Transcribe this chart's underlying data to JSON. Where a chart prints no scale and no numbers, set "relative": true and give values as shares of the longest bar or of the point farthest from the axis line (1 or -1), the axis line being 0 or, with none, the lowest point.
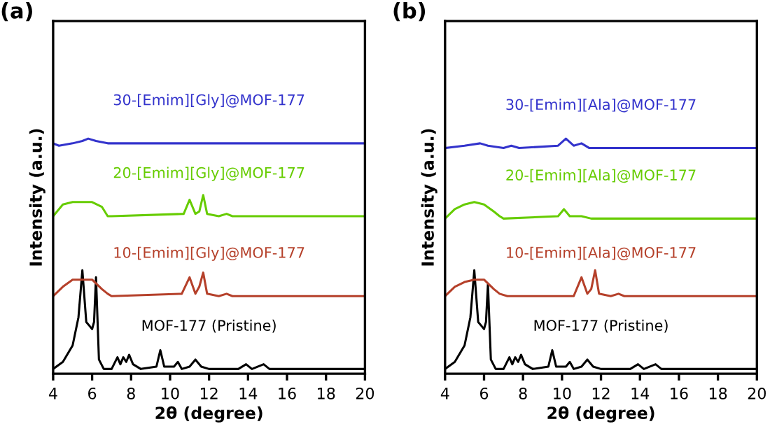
{
  "chart_data": [
    {
      "type": "line",
      "title": "(a)",
      "xlabel": "2θ (degree)",
      "ylabel": "Intensity (a.u.)",
      "relative": true,
      "xlim": [
        4,
        20
      ],
      "xticks": [
        4,
        6,
        8,
        10,
        12,
        14,
        16,
        18,
        20
      ],
      "legend": false,
      "grid": false,
      "series": [
        {
          "name": "MOF-177 (Pristine)",
          "color": "#000000",
          "x": [
            4,
            4.5,
            5,
            5.3,
            5.5,
            5.7,
            5.9,
            6.0,
            6.1,
            6.2,
            6.35,
            6.6,
            7,
            7.3,
            7.45,
            7.6,
            7.75,
            7.9,
            8.1,
            8.5,
            9.3,
            9.5,
            9.7,
            10.2,
            10.4,
            10.6,
            11,
            11.3,
            11.6,
            12,
            13.5,
            13.9,
            14.2,
            14.8,
            15.1,
            20
          ],
          "values": [
            0.02,
            0.05,
            0.12,
            0.24,
            0.44,
            0.22,
            0.2,
            0.19,
            0.22,
            0.41,
            0.06,
            0.02,
            0.02,
            0.07,
            0.04,
            0.07,
            0.05,
            0.08,
            0.04,
            0.02,
            0.03,
            0.1,
            0.03,
            0.03,
            0.05,
            0.02,
            0.03,
            0.06,
            0.03,
            0.02,
            0.02,
            0.04,
            0.02,
            0.04,
            0.02,
            0.02
          ]
        },
        {
          "name": "10-[Emim][Gly]@MOF-177",
          "color": "#b5402a",
          "x": [
            4,
            4.5,
            5,
            5.5,
            6,
            6.5,
            6.8,
            7,
            10.6,
            11,
            11.3,
            11.5,
            11.7,
            11.9,
            12.5,
            12.9,
            13.2,
            20
          ],
          "values": [
            0.33,
            0.37,
            0.4,
            0.4,
            0.4,
            0.36,
            0.34,
            0.33,
            0.34,
            0.41,
            0.34,
            0.37,
            0.43,
            0.34,
            0.33,
            0.34,
            0.33,
            0.33
          ]
        },
        {
          "name": "20-[Emim][Gly]@MOF-177",
          "color": "#66cc00",
          "x": [
            4,
            4.5,
            5,
            5.5,
            6,
            6.5,
            6.8,
            7,
            10.7,
            11,
            11.3,
            11.5,
            11.7,
            11.9,
            12.5,
            12.9,
            13.2,
            20
          ],
          "values": [
            0.67,
            0.72,
            0.73,
            0.73,
            0.73,
            0.71,
            0.67,
            0.67,
            0.68,
            0.74,
            0.68,
            0.69,
            0.76,
            0.68,
            0.67,
            0.68,
            0.67,
            0.67
          ]
        },
        {
          "name": "30-[Emim][Gly]@MOF-177",
          "color": "#3333cc",
          "x": [
            4,
            4.3,
            5,
            5.5,
            5.8,
            6.2,
            6.8,
            10.5,
            11,
            20
          ],
          "values": [
            0.98,
            0.97,
            0.98,
            0.99,
            1.0,
            0.99,
            0.98,
            0.98,
            0.98,
            0.98
          ]
        }
      ]
    },
    {
      "type": "line",
      "title": "(b)",
      "xlabel": "2θ (degree)",
      "ylabel": "Intensity (a.u.)",
      "relative": true,
      "xlim": [
        4,
        20
      ],
      "xticks": [
        4,
        6,
        8,
        10,
        12,
        14,
        16,
        18,
        20
      ],
      "legend": false,
      "grid": false,
      "series": [
        {
          "name": "MOF-177 (Pristine)",
          "color": "#000000",
          "x": [
            4,
            4.5,
            5,
            5.3,
            5.5,
            5.7,
            5.9,
            6.0,
            6.1,
            6.2,
            6.35,
            6.6,
            7,
            7.3,
            7.45,
            7.6,
            7.75,
            7.9,
            8.1,
            8.5,
            9.3,
            9.5,
            9.7,
            10.2,
            10.4,
            10.6,
            11,
            11.3,
            11.6,
            12,
            13.5,
            13.9,
            14.2,
            14.8,
            15.1,
            20
          ],
          "values": [
            0.02,
            0.05,
            0.12,
            0.24,
            0.44,
            0.22,
            0.2,
            0.19,
            0.22,
            0.38,
            0.06,
            0.02,
            0.02,
            0.07,
            0.04,
            0.07,
            0.05,
            0.08,
            0.04,
            0.02,
            0.03,
            0.1,
            0.03,
            0.03,
            0.05,
            0.02,
            0.03,
            0.06,
            0.03,
            0.02,
            0.02,
            0.04,
            0.02,
            0.04,
            0.02,
            0.02
          ]
        },
        {
          "name": "10-[Emim][Ala]@MOF-177",
          "color": "#b5402a",
          "x": [
            4,
            4.5,
            5,
            5.5,
            6,
            6.5,
            6.8,
            7.2,
            10.6,
            11,
            11.3,
            11.5,
            11.7,
            11.9,
            12.5,
            12.9,
            13.2,
            20
          ],
          "values": [
            0.33,
            0.37,
            0.39,
            0.4,
            0.4,
            0.36,
            0.34,
            0.33,
            0.33,
            0.41,
            0.34,
            0.36,
            0.44,
            0.34,
            0.33,
            0.34,
            0.33,
            0.33
          ]
        },
        {
          "name": "20-[Emim][Ala]@MOF-177",
          "color": "#66cc00",
          "x": [
            4,
            4.5,
            5,
            5.5,
            6,
            6.5,
            6.8,
            7,
            9.8,
            10.1,
            10.4,
            11,
            11.5,
            20
          ],
          "values": [
            0.66,
            0.7,
            0.72,
            0.73,
            0.72,
            0.69,
            0.67,
            0.66,
            0.67,
            0.7,
            0.67,
            0.67,
            0.66,
            0.66
          ]
        },
        {
          "name": "30-[Emim][Ala]@MOF-177",
          "color": "#3333cc",
          "x": [
            4,
            5,
            5.8,
            6.2,
            7,
            7.4,
            7.8,
            9.8,
            10.2,
            10.6,
            11,
            11.4,
            20
          ],
          "values": [
            0.96,
            0.97,
            0.98,
            0.97,
            0.96,
            0.97,
            0.96,
            0.97,
            1.0,
            0.97,
            0.98,
            0.96,
            0.96
          ]
        }
      ]
    }
  ]
}
